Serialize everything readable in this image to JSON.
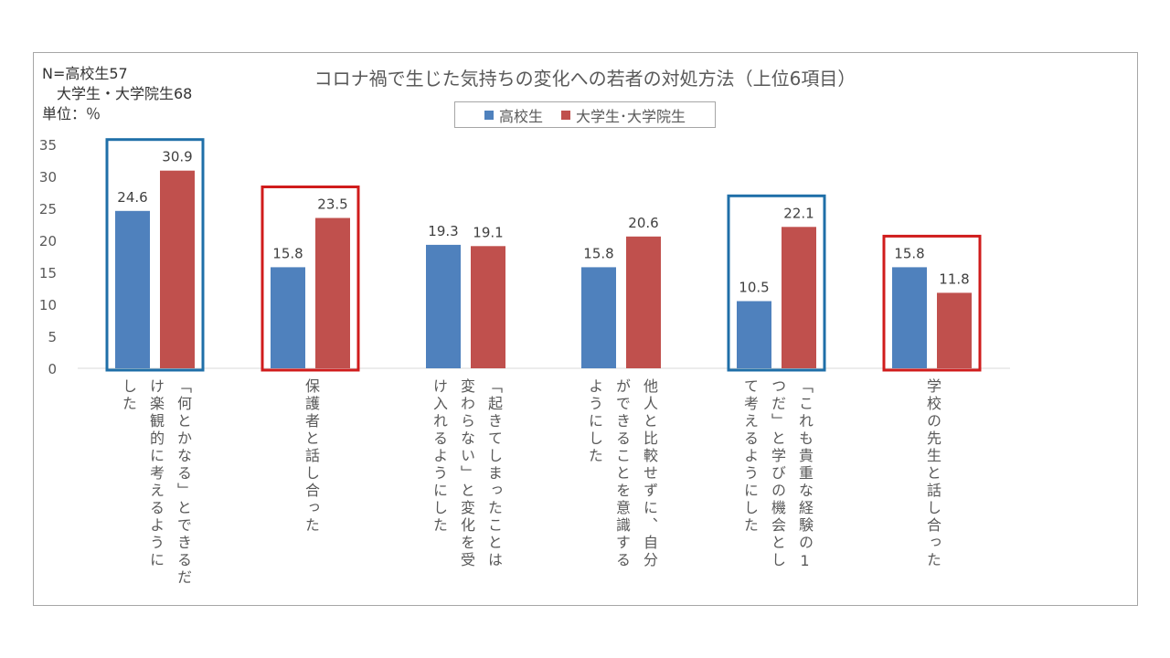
{
  "chart_data": {
    "type": "bar",
    "title": "コロナ禍で生じた気持ちの変化への若者の対処方法（上位6項目）",
    "note": [
      "N=高校生57",
      "　大学生・大学院生68",
      "単位：％"
    ],
    "categories": [
      [
        "「何とかなる」とできるだ",
        "け楽観的に考えるように",
        "した"
      ],
      [
        "保護者と話し合った"
      ],
      [
        "「起きてしまったことは",
        "変わらない」と変化を受",
        "け入れるようにした"
      ],
      [
        "他人と比較せずに、自分",
        "ができることを意識する",
        "ようにした"
      ],
      [
        "「これも貴重な経験の1",
        "つだ」と学びの機会とし",
        "て考えるようにした"
      ],
      [
        "学校の先生と話し合った"
      ]
    ],
    "series": [
      {
        "name": "高校生",
        "color": "#4f81bd",
        "values": [
          24.6,
          15.8,
          19.3,
          15.8,
          10.5,
          15.8
        ]
      },
      {
        "name": "大学生･大学院生",
        "color": "#c0504d",
        "values": [
          30.9,
          23.5,
          19.1,
          20.6,
          22.1,
          11.8
        ]
      }
    ],
    "ylim": [
      0,
      35
    ],
    "yticks": [
      0,
      5,
      10,
      15,
      20,
      25,
      30,
      35
    ],
    "grid": false,
    "legend": "top",
    "highlights": [
      {
        "category": 0,
        "color": "#1f6fa8"
      },
      {
        "category": 1,
        "color": "#d01c1c"
      },
      {
        "category": 4,
        "color": "#1f6fa8"
      },
      {
        "category": 5,
        "color": "#d01c1c"
      }
    ]
  }
}
